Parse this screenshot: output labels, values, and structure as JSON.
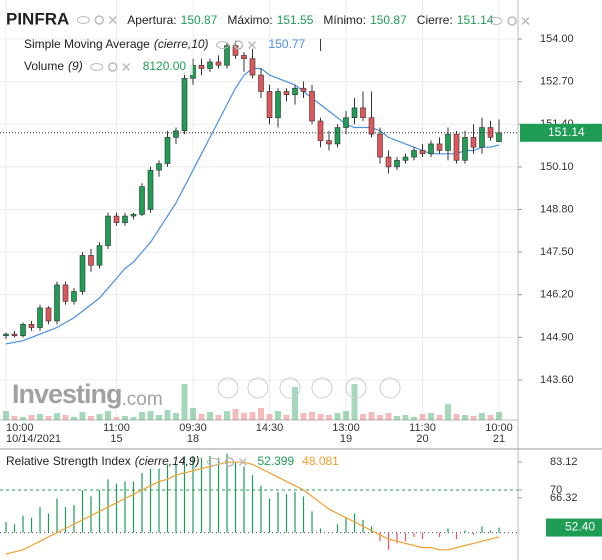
{
  "chart_data": [
    {
      "type": "candlestick",
      "title": "PINFRA",
      "stats": [
        {
          "label": "Apertura:",
          "value": 150.87
        },
        {
          "label": "Máximo:",
          "value": 151.55
        },
        {
          "label": "Mínimo:",
          "value": 150.87
        },
        {
          "label": "Cierre:",
          "value": 151.14
        }
      ],
      "sma_name": "Simple Moving Average",
      "sma_params": "(cierre,10)",
      "sma_value": 150.77,
      "sma_color": "#4a90e2",
      "volume_name": "Volume",
      "volume_params": "(9)",
      "volume_value": {
        "value": 8120,
        "label": "8120.00"
      },
      "watermark": "Investing",
      "watermark_suffix": ".com",
      "up_color": "#1f9d55",
      "down_color": "#e0575b",
      "categories": [
        "10:00",
        null,
        null,
        null,
        null,
        null,
        null,
        null,
        null,
        null,
        null,
        null,
        null,
        "11:00",
        null,
        null,
        null,
        null,
        null,
        null,
        null,
        null,
        "09:30",
        null,
        null,
        null,
        null,
        null,
        null,
        null,
        null,
        "14:30",
        null,
        null,
        null,
        null,
        null,
        null,
        null,
        null,
        "13:00",
        null,
        null,
        null,
        null,
        null,
        null,
        null,
        null,
        "11:30",
        null,
        null,
        null,
        null,
        null,
        null,
        null,
        null,
        "10:00"
      ],
      "date_labels": [
        "10/14/2021",
        null,
        null,
        null,
        null,
        null,
        null,
        null,
        null,
        null,
        null,
        null,
        null,
        "15",
        null,
        null,
        null,
        null,
        null,
        null,
        null,
        null,
        "18",
        null,
        null,
        null,
        null,
        null,
        null,
        null,
        null,
        null,
        null,
        null,
        null,
        null,
        null,
        null,
        null,
        null,
        "19",
        null,
        null,
        null,
        null,
        null,
        null,
        null,
        null,
        "20",
        null,
        null,
        null,
        null,
        null,
        null,
        null,
        null,
        "21"
      ],
      "open": [
        144.95,
        145.0,
        144.95,
        145.3,
        145.2,
        145.8,
        145.4,
        146.5,
        146.0,
        146.3,
        147.4,
        147.1,
        147.7,
        148.6,
        148.4,
        148.6,
        148.65,
        148.8,
        150.0,
        150.2,
        151.0,
        151.2,
        152.8,
        153.2,
        153.1,
        153.3,
        153.2,
        153.8,
        153.5,
        153.4,
        152.9,
        152.4,
        151.6,
        152.4,
        152.3,
        152.5,
        152.4,
        151.5,
        150.9,
        150.8,
        151.3,
        151.6,
        151.9,
        151.6,
        151.1,
        150.4,
        150.1,
        150.3,
        150.4,
        150.6,
        150.5,
        150.8,
        150.6,
        151.1,
        150.3,
        151.0,
        150.7,
        151.3,
        150.87
      ],
      "high": [
        145.05,
        145.1,
        145.35,
        145.4,
        145.9,
        145.85,
        146.6,
        146.6,
        146.4,
        147.5,
        147.6,
        147.8,
        148.7,
        148.7,
        148.7,
        148.7,
        149.6,
        150.1,
        150.3,
        151.2,
        151.3,
        153.0,
        153.4,
        153.4,
        153.4,
        153.5,
        153.9,
        153.95,
        153.6,
        153.7,
        153.1,
        152.6,
        152.5,
        152.5,
        152.6,
        152.7,
        152.6,
        151.6,
        151.2,
        151.4,
        151.8,
        152.2,
        152.4,
        152.4,
        151.3,
        150.6,
        150.4,
        150.5,
        150.7,
        150.8,
        150.9,
        151.0,
        151.3,
        151.2,
        151.2,
        151.4,
        151.6,
        151.5,
        151.55
      ],
      "low": [
        144.85,
        144.9,
        144.9,
        145.1,
        145.1,
        145.3,
        145.3,
        145.9,
        145.9,
        146.2,
        146.9,
        147.0,
        147.6,
        148.3,
        148.3,
        148.5,
        148.6,
        148.7,
        149.8,
        150.1,
        150.8,
        151.1,
        152.6,
        152.9,
        153.0,
        153.1,
        153.1,
        153.4,
        153.0,
        152.8,
        152.2,
        151.4,
        151.3,
        152.1,
        152.0,
        152.2,
        151.4,
        150.7,
        150.6,
        150.7,
        151.1,
        151.4,
        151.5,
        151.0,
        150.2,
        149.9,
        150.0,
        150.2,
        150.3,
        150.4,
        150.4,
        150.5,
        150.3,
        150.2,
        150.2,
        150.5,
        150.5,
        150.9,
        150.87
      ],
      "close": [
        145.0,
        144.95,
        145.3,
        145.2,
        145.8,
        145.4,
        146.5,
        146.0,
        146.3,
        147.4,
        147.1,
        147.7,
        148.6,
        148.4,
        148.6,
        148.65,
        149.5,
        150.0,
        150.2,
        151.0,
        151.2,
        152.8,
        153.2,
        153.1,
        153.3,
        153.2,
        153.8,
        153.5,
        153.4,
        152.9,
        152.4,
        151.6,
        152.4,
        152.3,
        152.5,
        152.4,
        151.5,
        150.9,
        150.8,
        151.3,
        151.6,
        151.9,
        151.6,
        151.1,
        150.4,
        150.1,
        150.3,
        150.4,
        150.6,
        150.5,
        150.8,
        150.6,
        151.1,
        150.3,
        151.0,
        150.7,
        151.3,
        151.0,
        151.14
      ],
      "sma": [
        144.7,
        144.75,
        144.8,
        144.9,
        145.0,
        145.1,
        145.2,
        145.35,
        145.5,
        145.7,
        145.9,
        146.1,
        146.4,
        146.7,
        147.0,
        147.2,
        147.5,
        147.8,
        148.2,
        148.6,
        149.0,
        149.5,
        150.0,
        150.5,
        151.0,
        151.5,
        152.0,
        152.5,
        152.9,
        153.1,
        153.1,
        152.9,
        152.8,
        152.7,
        152.6,
        152.4,
        152.2,
        152.0,
        151.8,
        151.6,
        151.4,
        151.3,
        151.3,
        151.3,
        151.2,
        151.0,
        150.9,
        150.8,
        150.7,
        150.6,
        150.5,
        150.5,
        150.5,
        150.5,
        150.6,
        150.6,
        150.7,
        150.7,
        150.77
      ],
      "volume": [
        9000,
        4000,
        3000,
        5000,
        6000,
        4000,
        7000,
        5000,
        3000,
        8000,
        4000,
        6000,
        9000,
        3000,
        4000,
        3000,
        8000,
        9000,
        5000,
        10000,
        7000,
        36000,
        12000,
        6000,
        8000,
        5000,
        9000,
        11000,
        7000,
        8000,
        12000,
        6000,
        9000,
        5000,
        33000,
        7000,
        8000,
        6000,
        5000,
        7000,
        9000,
        36000,
        6000,
        8000,
        5000,
        7000,
        4000,
        5000,
        3000,
        6000,
        7000,
        5000,
        16000,
        6000,
        5000,
        4000,
        7000,
        5000,
        8120
      ],
      "volume_ylim": [
        0,
        40000
      ],
      "ylim": [
        142.38,
        155.19
      ],
      "yticks": [
        {
          "value": 154,
          "label": "154.00"
        },
        {
          "value": 152.7,
          "label": "152.70"
        },
        {
          "value": 151.4,
          "label": "151.40"
        },
        {
          "value": 150.1,
          "label": "150.10"
        },
        {
          "value": 148.8,
          "label": "148.80"
        },
        {
          "value": 147.5,
          "label": "147.50"
        },
        {
          "value": 146.2,
          "label": "146.20"
        },
        {
          "value": 144.9,
          "label": "144.90"
        },
        {
          "value": 143.6,
          "label": "143.60"
        }
      ],
      "grid": true
    },
    {
      "type": "rsi",
      "title": "Relative Strength Index",
      "params": "(cierre,14,9)",
      "legend_values": [
        52.399,
        48.081
      ],
      "signal_color": "#f0a030",
      "up_color": "#1f9d55",
      "down_color": "#e0575b",
      "rsi": [
        55,
        54,
        58,
        57,
        62,
        59,
        66,
        62,
        63,
        70,
        67,
        70,
        75,
        73,
        74,
        74,
        78,
        80,
        80,
        82,
        82,
        85,
        86,
        85,
        86,
        85,
        87,
        83,
        81,
        77,
        72,
        66,
        69,
        68,
        69,
        67,
        60,
        52,
        50,
        54,
        57,
        59,
        56,
        53,
        46,
        42,
        45,
        46,
        48,
        47,
        50,
        48,
        52,
        47,
        51,
        49,
        53,
        51,
        52.399
      ],
      "signal": [
        40,
        41,
        42,
        44,
        46,
        48,
        50,
        52,
        54,
        56,
        58,
        60,
        62,
        64,
        66,
        68,
        70,
        72,
        74,
        75,
        77,
        78,
        79,
        80,
        81,
        82,
        83,
        83,
        83,
        82,
        80,
        78,
        76,
        74,
        72,
        70,
        67,
        64,
        61,
        59,
        57,
        55,
        53,
        51,
        49,
        47,
        46,
        45,
        44,
        43,
        43,
        42,
        42,
        43,
        44,
        45,
        46,
        47,
        48.081
      ],
      "current": {
        "value": 52.4,
        "label": "52.40"
      },
      "levels": [
        70,
        50
      ],
      "ylim": [
        37.2,
        87.8
      ],
      "yticks": [
        83.12,
        70,
        66.32
      ]
    }
  ]
}
